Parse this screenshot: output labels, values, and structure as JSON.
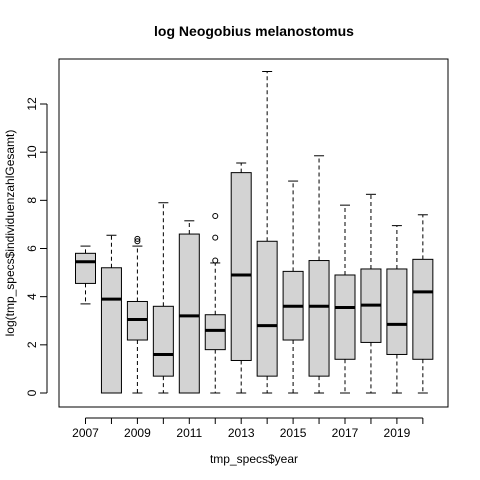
{
  "chart_data": {
    "type": "boxplot",
    "title": "log Neogobius melanostomus",
    "xlabel": "tmp_specs$year",
    "ylabel": "log(tmp_specs$individuenzahlGesamt)",
    "ylim": [
      -0.55,
      13.9
    ],
    "yticks": [
      0,
      2,
      4,
      6,
      8,
      10,
      12
    ],
    "x_tick_labels": [
      "2007",
      "2009",
      "2011",
      "2013",
      "2015",
      "2017",
      "2019"
    ],
    "grid": false,
    "legend": "none",
    "box_fill": "#d3d3d3",
    "categories": [
      "2007",
      "2008",
      "2009",
      "2010",
      "2011",
      "2012",
      "2013",
      "2014",
      "2015",
      "2016",
      "2017",
      "2018",
      "2019",
      "2020"
    ],
    "boxes": [
      {
        "year": "2007",
        "min": 3.7,
        "q1": 4.55,
        "median": 5.45,
        "q3": 5.8,
        "max": 6.1,
        "outliers": []
      },
      {
        "year": "2008",
        "min": 0.0,
        "q1": 0.0,
        "median": 3.9,
        "q3": 5.2,
        "max": 6.55,
        "outliers": []
      },
      {
        "year": "2009",
        "min": 0.0,
        "q1": 2.2,
        "median": 3.05,
        "q3": 3.8,
        "max": 6.1,
        "outliers": [
          6.3,
          6.4
        ]
      },
      {
        "year": "2010",
        "min": 0.0,
        "q1": 0.7,
        "median": 1.6,
        "q3": 3.6,
        "max": 7.9,
        "outliers": []
      },
      {
        "year": "2011",
        "min": 0.0,
        "q1": 0.0,
        "median": 3.2,
        "q3": 6.6,
        "max": 7.15,
        "outliers": []
      },
      {
        "year": "2012",
        "min": 0.0,
        "q1": 1.8,
        "median": 2.6,
        "q3": 3.25,
        "max": 5.4,
        "outliers": [
          5.5,
          6.45,
          7.35
        ]
      },
      {
        "year": "2013",
        "min": 0.0,
        "q1": 1.35,
        "median": 4.9,
        "q3": 9.15,
        "max": 9.55,
        "outliers": []
      },
      {
        "year": "2014",
        "min": 0.0,
        "q1": 0.7,
        "median": 2.8,
        "q3": 6.3,
        "max": 13.35,
        "outliers": []
      },
      {
        "year": "2015",
        "min": 0.0,
        "q1": 2.2,
        "median": 3.6,
        "q3": 5.05,
        "max": 8.8,
        "outliers": []
      },
      {
        "year": "2016",
        "min": 0.0,
        "q1": 0.7,
        "median": 3.6,
        "q3": 5.5,
        "max": 9.85,
        "outliers": []
      },
      {
        "year": "2017",
        "min": 0.0,
        "q1": 1.4,
        "median": 3.55,
        "q3": 4.9,
        "max": 7.8,
        "outliers": []
      },
      {
        "year": "2018",
        "min": 0.0,
        "q1": 2.1,
        "median": 3.65,
        "q3": 5.15,
        "max": 8.25,
        "outliers": []
      },
      {
        "year": "2019",
        "min": 0.0,
        "q1": 1.6,
        "median": 2.85,
        "q3": 5.15,
        "max": 6.95,
        "outliers": []
      },
      {
        "year": "2020",
        "min": 0.0,
        "q1": 1.4,
        "median": 4.2,
        "q3": 5.55,
        "max": 7.4,
        "outliers": []
      }
    ]
  }
}
